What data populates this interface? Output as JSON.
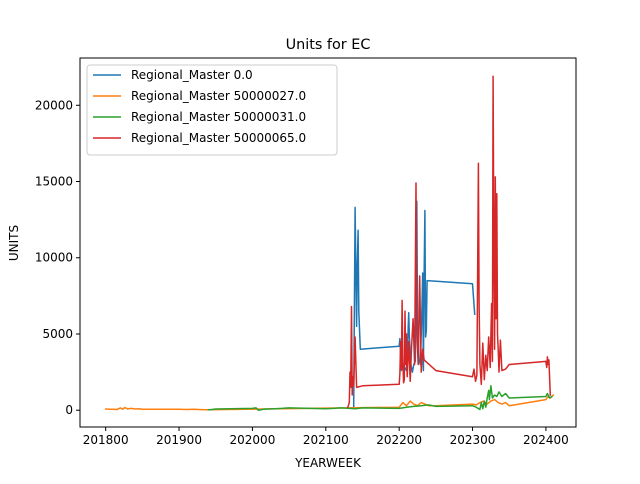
{
  "chart_data": {
    "type": "line",
    "title": "Units for EC",
    "xlabel": "YEARWEEK",
    "ylabel": "UNITS",
    "xlim": [
      201765,
      202441
    ],
    "ylim": [
      -1100,
      23100
    ],
    "x_ticks": [
      201800,
      201900,
      202000,
      202100,
      202200,
      202300,
      202400
    ],
    "x_tick_labels": [
      "201800",
      "201900",
      "202000",
      "202100",
      "202200",
      "202300",
      "202400"
    ],
    "y_ticks": [
      0,
      5000,
      10000,
      15000,
      20000
    ],
    "y_tick_labels": [
      "0",
      "5000",
      "10000",
      "15000",
      "20000"
    ],
    "grid": false,
    "legend_position": "upper left",
    "series": [
      {
        "name": "Regional_Master 0.0",
        "color": "#1f77b4",
        "points": [
          [
            202138,
            200
          ],
          [
            202139,
            6800
          ],
          [
            202140,
            13300
          ],
          [
            202141,
            9000
          ],
          [
            202142,
            5500
          ],
          [
            202143,
            9500
          ],
          [
            202144,
            11800
          ],
          [
            202145,
            6500
          ],
          [
            202147,
            4000
          ],
          [
            202200,
            4200
          ],
          [
            202201,
            4700
          ],
          [
            202202,
            3800
          ],
          [
            202203,
            2600
          ],
          [
            202205,
            3000
          ],
          [
            202210,
            2600
          ],
          [
            202212,
            5000
          ],
          [
            202213,
            6400
          ],
          [
            202214,
            4800
          ],
          [
            202216,
            3000
          ],
          [
            202218,
            2500
          ],
          [
            202220,
            3000
          ],
          [
            202222,
            3200
          ],
          [
            202224,
            13700
          ],
          [
            202225,
            6000
          ],
          [
            202227,
            3300
          ],
          [
            202229,
            3000
          ],
          [
            202231,
            6600
          ],
          [
            202232,
            9000
          ],
          [
            202233,
            2600
          ],
          [
            202234,
            8700
          ],
          [
            202235,
            13100
          ],
          [
            202236,
            4800
          ],
          [
            202237,
            5200
          ],
          [
            202238,
            8500
          ],
          [
            202300,
            8300
          ],
          [
            202303,
            6300
          ]
        ]
      },
      {
        "name": "Regional_Master 50000027.0",
        "color": "#ff7f0e",
        "points": [
          [
            201800,
            80
          ],
          [
            201805,
            60
          ],
          [
            201810,
            70
          ],
          [
            201815,
            50
          ],
          [
            201820,
            150
          ],
          [
            201823,
            60
          ],
          [
            201826,
            180
          ],
          [
            201830,
            90
          ],
          [
            201835,
            120
          ],
          [
            201840,
            80
          ],
          [
            201845,
            100
          ],
          [
            201850,
            70
          ],
          [
            201900,
            60
          ],
          [
            201910,
            50
          ],
          [
            201920,
            60
          ],
          [
            201930,
            40
          ],
          [
            201940,
            30
          ],
          [
            202200,
            200
          ],
          [
            202205,
            500
          ],
          [
            202210,
            300
          ],
          [
            202215,
            600
          ],
          [
            202220,
            400
          ],
          [
            202225,
            300
          ],
          [
            202230,
            500
          ],
          [
            202235,
            400
          ],
          [
            202240,
            300
          ],
          [
            202250,
            300
          ],
          [
            202300,
            400
          ],
          [
            202305,
            350
          ],
          [
            202310,
            500
          ],
          [
            202315,
            600
          ],
          [
            202320,
            400
          ],
          [
            202325,
            600
          ],
          [
            202330,
            700
          ],
          [
            202335,
            500
          ],
          [
            202340,
            400
          ],
          [
            202345,
            500
          ],
          [
            202350,
            300
          ],
          [
            202400,
            700
          ],
          [
            202403,
            900
          ],
          [
            202406,
            800
          ],
          [
            202410,
            1000
          ]
        ]
      },
      {
        "name": "Regional_Master 50000031.0",
        "color": "#2ca02c",
        "points": [
          [
            201940,
            30
          ],
          [
            201945,
            50
          ],
          [
            201950,
            80
          ],
          [
            202000,
            120
          ],
          [
            202005,
            150
          ],
          [
            202008,
            0
          ],
          [
            202015,
            60
          ],
          [
            202020,
            80
          ],
          [
            202030,
            100
          ],
          [
            202040,
            120
          ],
          [
            202050,
            150
          ],
          [
            202100,
            100
          ],
          [
            202110,
            120
          ],
          [
            202120,
            150
          ],
          [
            202130,
            130
          ],
          [
            202140,
            100
          ],
          [
            202150,
            150
          ],
          [
            202200,
            120
          ],
          [
            202210,
            200
          ],
          [
            202220,
            250
          ],
          [
            202230,
            300
          ],
          [
            202240,
            350
          ],
          [
            202250,
            250
          ],
          [
            202300,
            300
          ],
          [
            202305,
            200
          ],
          [
            202310,
            50
          ],
          [
            202312,
            500
          ],
          [
            202314,
            100
          ],
          [
            202316,
            600
          ],
          [
            202318,
            200
          ],
          [
            202320,
            800
          ],
          [
            202322,
            1300
          ],
          [
            202323,
            700
          ],
          [
            202325,
            1600
          ],
          [
            202327,
            800
          ],
          [
            202330,
            1000
          ],
          [
            202333,
            900
          ],
          [
            202336,
            1200
          ],
          [
            202340,
            900
          ],
          [
            202345,
            1100
          ],
          [
            202350,
            800
          ],
          [
            202400,
            900
          ],
          [
            202402,
            1100
          ],
          [
            202405,
            800
          ],
          [
            202408,
            900
          ]
        ]
      },
      {
        "name": "Regional_Master 50000065.0",
        "color": "#d62728",
        "points": [
          [
            202130,
            200
          ],
          [
            202132,
            500
          ],
          [
            202133,
            2500
          ],
          [
            202134,
            1500
          ],
          [
            202135,
            6800
          ],
          [
            202136,
            1000
          ],
          [
            202137,
            2200
          ],
          [
            202138,
            1600
          ],
          [
            202140,
            4800
          ],
          [
            202142,
            1500
          ],
          [
            202150,
            1600
          ],
          [
            202200,
            1700
          ],
          [
            202201,
            2400
          ],
          [
            202202,
            4500
          ],
          [
            202203,
            2700
          ],
          [
            202204,
            7200
          ],
          [
            202205,
            3200
          ],
          [
            202206,
            1800
          ],
          [
            202207,
            2000
          ],
          [
            202208,
            6500
          ],
          [
            202209,
            3000
          ],
          [
            202210,
            5000
          ],
          [
            202211,
            2200
          ],
          [
            202213,
            4500
          ],
          [
            202215,
            1900
          ],
          [
            202217,
            4200
          ],
          [
            202219,
            6000
          ],
          [
            202221,
            3000
          ],
          [
            202223,
            14900
          ],
          [
            202224,
            5000
          ],
          [
            202226,
            3000
          ],
          [
            202228,
            8800
          ],
          [
            202230,
            2500
          ],
          [
            202232,
            4000
          ],
          [
            202234,
            3300
          ],
          [
            202250,
            2600
          ],
          [
            202300,
            2200
          ],
          [
            202302,
            2700
          ],
          [
            202304,
            1900
          ],
          [
            202306,
            2300
          ],
          [
            202308,
            16200
          ],
          [
            202309,
            7000
          ],
          [
            202310,
            3000
          ],
          [
            202312,
            1700
          ],
          [
            202314,
            4400
          ],
          [
            202316,
            2000
          ],
          [
            202318,
            3600
          ],
          [
            202320,
            2600
          ],
          [
            202322,
            4800
          ],
          [
            202324,
            2800
          ],
          [
            202326,
            7000
          ],
          [
            202327,
            3200
          ],
          [
            202328,
            21900
          ],
          [
            202329,
            11000
          ],
          [
            202330,
            4000
          ],
          [
            202331,
            15300
          ],
          [
            202332,
            6000
          ],
          [
            202333,
            14200
          ],
          [
            202334,
            5000
          ],
          [
            202335,
            4000
          ],
          [
            202336,
            2500
          ],
          [
            202338,
            4600
          ],
          [
            202340,
            2600
          ],
          [
            202345,
            2700
          ],
          [
            202350,
            3000
          ],
          [
            202400,
            3200
          ],
          [
            202401,
            2800
          ],
          [
            202402,
            3500
          ],
          [
            202403,
            3000
          ],
          [
            202404,
            3300
          ],
          [
            202406,
            1000
          ]
        ]
      }
    ]
  }
}
